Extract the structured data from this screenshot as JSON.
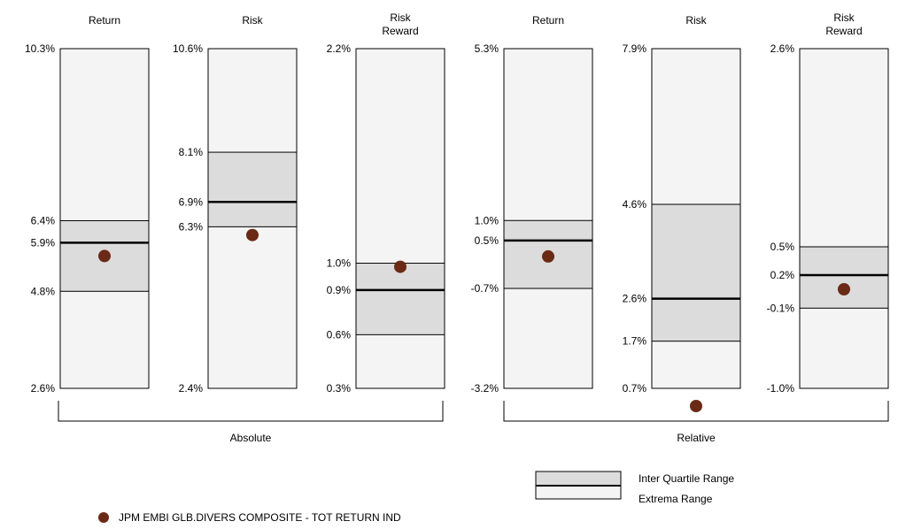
{
  "chart_data": {
    "type": "range-bar",
    "groups": [
      {
        "label": "Absolute",
        "panels": [
          0,
          1,
          2
        ]
      },
      {
        "label": "Relative",
        "panels": [
          3,
          4,
          5
        ]
      }
    ],
    "panels": [
      {
        "title": [
          "Return"
        ],
        "extrema": [
          2.6,
          10.3
        ],
        "iqr": [
          4.8,
          6.4
        ],
        "median": 5.9,
        "point": 5.6,
        "ticks": [
          "10.3%",
          "6.4%",
          "5.9%",
          "4.8%",
          "2.6%"
        ],
        "tick_values": [
          10.3,
          6.4,
          5.9,
          4.8,
          2.6
        ]
      },
      {
        "title": [
          "Risk"
        ],
        "extrema": [
          2.4,
          10.6
        ],
        "iqr": [
          6.3,
          8.1
        ],
        "median": 6.9,
        "point": 6.1,
        "ticks": [
          "10.6%",
          "8.1%",
          "6.9%",
          "6.3%",
          "2.4%"
        ],
        "tick_values": [
          10.6,
          8.1,
          6.9,
          6.3,
          2.4
        ]
      },
      {
        "title": [
          "Risk",
          "Reward"
        ],
        "extrema": [
          0.3,
          2.2
        ],
        "iqr": [
          0.6,
          1.0
        ],
        "median": 0.85,
        "point": 0.98,
        "ticks": [
          "2.2%",
          "1.0%",
          "0.9%",
          "0.6%",
          "0.3%"
        ],
        "tick_values": [
          2.2,
          1.0,
          0.85,
          0.6,
          0.3
        ]
      },
      {
        "title": [
          "Return"
        ],
        "extrema": [
          -3.2,
          5.3
        ],
        "iqr": [
          -0.7,
          1.0
        ],
        "median": 0.5,
        "point": 0.1,
        "ticks": [
          "5.3%",
          "1.0%",
          "0.5%",
          "-0.7%",
          "-3.2%"
        ],
        "tick_values": [
          5.3,
          1.0,
          0.5,
          -0.7,
          -3.2
        ]
      },
      {
        "title": [
          "Risk"
        ],
        "extrema": [
          0.7,
          7.9
        ],
        "iqr": [
          1.7,
          4.6
        ],
        "median": 2.6,
        "point": 0.3,
        "ticks": [
          "7.9%",
          "4.6%",
          "2.6%",
          "1.7%",
          "0.7%"
        ],
        "tick_values": [
          7.9,
          4.6,
          2.6,
          1.7,
          0.7
        ]
      },
      {
        "title": [
          "Risk",
          "Reward"
        ],
        "extrema": [
          -1.0,
          2.6
        ],
        "iqr": [
          -0.15,
          0.5
        ],
        "median": 0.2,
        "point": 0.05,
        "ticks": [
          "2.6%",
          "0.5%",
          "0.2%",
          "-0.1%",
          "-1.0%"
        ],
        "tick_values": [
          2.6,
          0.5,
          0.2,
          -0.15,
          -1.0
        ]
      }
    ],
    "legend": {
      "iqr_label": "Inter Quartile Range",
      "extrema_label": "Extrema Range",
      "series_label": "JPM EMBI GLB.DIVERS COMPOSITE - TOT RETURN IND"
    },
    "colors": {
      "iqr_fill": "#dcdcdc",
      "extrema_fill": "#f4f4f4",
      "point": "#6b2a16",
      "line": "#000000"
    }
  }
}
